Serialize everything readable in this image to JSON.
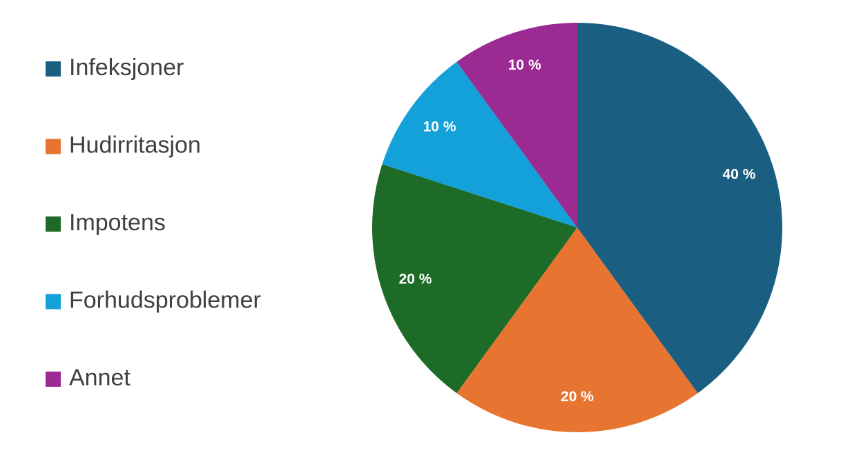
{
  "chart_data": {
    "type": "pie",
    "categories": [
      "Infeksjoner",
      "Hudirritasjon",
      "Impotens",
      "Forhudsproblemer",
      "Annet"
    ],
    "values": [
      40,
      20,
      20,
      10,
      10
    ],
    "value_labels": [
      "40 %",
      "20 %",
      "20 %",
      "10 %",
      "10 %"
    ],
    "colors": [
      "#1a5f82",
      "#e87432",
      "#1e6b27",
      "#14a0d8",
      "#9c2a93"
    ],
    "legend": "left"
  }
}
